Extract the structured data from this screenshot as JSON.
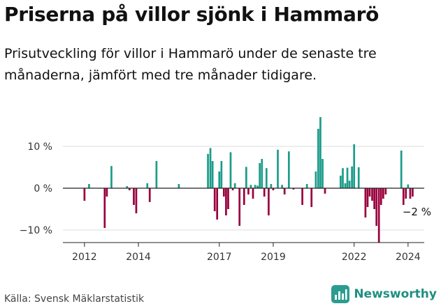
{
  "title": "Priserna på villor sjönk i Hammarö",
  "subtitle": "Prisutveckling för villor i Hammarö under de senaste tre månaderna, jämfört med tre månader tidigare.",
  "source": "Källa: Svensk Mäklarstatistik",
  "brand": {
    "name": "Newsworthy",
    "icon": "newsworthy-chart-icon"
  },
  "colors": {
    "positive": "#1a9c8a",
    "negative": "#99003d",
    "brand": "#1f8f80"
  },
  "chart_data": {
    "type": "bar",
    "title": "Priserna på villor sjönk i Hammarö",
    "xlabel": "",
    "ylabel": "",
    "ylim": [
      -13,
      17
    ],
    "yticks": [
      {
        "value": 10,
        "label": "10 %"
      },
      {
        "value": 0,
        "label": "0 %"
      },
      {
        "value": -10,
        "label": "−10 %"
      }
    ],
    "xlim": [
      2011.2,
      2024.6
    ],
    "xticks": [
      {
        "value": 2012,
        "label": "2012"
      },
      {
        "value": 2014,
        "label": "2014"
      },
      {
        "value": 2017,
        "label": "2017"
      },
      {
        "value": 2019,
        "label": "2019"
      },
      {
        "value": 2022,
        "label": "2022"
      },
      {
        "value": 2024,
        "label": "2024"
      }
    ],
    "grid": true,
    "bar_width_years": 0.07,
    "annotation": {
      "text": "−2 %",
      "x": 2024.17,
      "value": -2
    },
    "x": [
      2012.0,
      2012.17,
      2012.75,
      2012.83,
      2013.0,
      2013.58,
      2013.67,
      2013.83,
      2013.92,
      2014.33,
      2014.42,
      2014.67,
      2015.5,
      2016.58,
      2016.67,
      2016.75,
      2016.83,
      2016.92,
      2017.0,
      2017.08,
      2017.17,
      2017.25,
      2017.33,
      2017.42,
      2017.5,
      2017.58,
      2017.75,
      2017.92,
      2018.0,
      2018.08,
      2018.17,
      2018.25,
      2018.33,
      2018.42,
      2018.5,
      2018.58,
      2018.67,
      2018.75,
      2018.83,
      2018.92,
      2019.0,
      2019.17,
      2019.33,
      2019.42,
      2019.58,
      2019.75,
      2020.08,
      2020.25,
      2020.42,
      2020.58,
      2020.67,
      2020.75,
      2020.83,
      2020.92,
      2021.5,
      2021.58,
      2021.67,
      2021.75,
      2021.83,
      2021.92,
      2022.0,
      2022.17,
      2022.42,
      2022.5,
      2022.58,
      2022.67,
      2022.75,
      2022.83,
      2022.92,
      2023.0,
      2023.08,
      2023.17,
      2023.75,
      2023.83,
      2023.92,
      2024.0,
      2024.08,
      2024.17
    ],
    "values": [
      -3,
      1,
      -9.5,
      -2,
      5.3,
      0.5,
      -0.5,
      -4,
      -6,
      1.2,
      -3.3,
      6.5,
      1,
      8.2,
      9.6,
      6.5,
      -5.5,
      -7.5,
      4,
      6.5,
      -2,
      -6.5,
      -5,
      8.6,
      -0.5,
      1.2,
      -9,
      -4,
      5.1,
      -1.5,
      0.8,
      -2.5,
      0.8,
      0.6,
      6,
      7,
      -2,
      4.8,
      -6.5,
      1,
      -0.5,
      9.2,
      0.8,
      -1.5,
      8.8,
      -0.3,
      -4,
      1,
      -4.5,
      4,
      14.2,
      17,
      7,
      -1.3,
      3,
      4.8,
      1.2,
      4.9,
      1.8,
      5.2,
      10.5,
      5,
      -7,
      -4.5,
      -2,
      -3,
      -5,
      -9,
      -13,
      -4,
      -2.5,
      -1.5,
      9,
      -4,
      -2.5,
      0.9,
      -2.5,
      -2
    ]
  }
}
